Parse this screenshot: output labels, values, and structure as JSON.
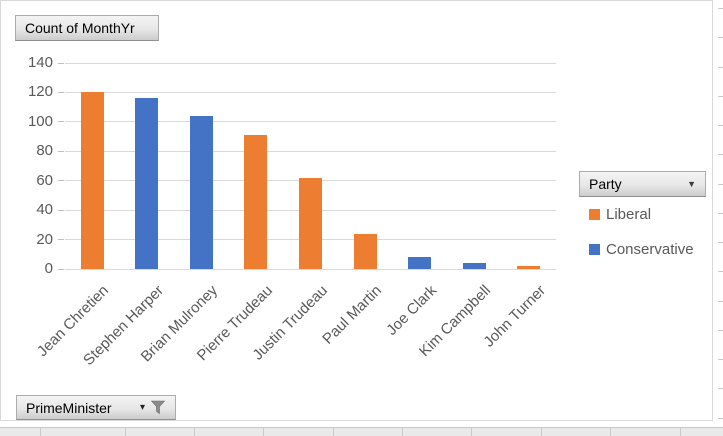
{
  "chart_data": {
    "type": "bar",
    "value_field": "Count of MonthYr",
    "category_field": "PrimeMinister",
    "legend_field": "Party",
    "categories": [
      "Jean Chretien",
      "Stephen Harper",
      "Brian Mulroney",
      "Pierre Trudeau",
      "Justin Trudeau",
      "Paul Martin",
      "Joe Clark",
      "Kim Campbell",
      "John Turner"
    ],
    "points": [
      {
        "category": "Jean Chretien",
        "value": 120,
        "party": "Liberal"
      },
      {
        "category": "Stephen Harper",
        "value": 116,
        "party": "Conservative"
      },
      {
        "category": "Brian Mulroney",
        "value": 104,
        "party": "Conservative"
      },
      {
        "category": "Pierre Trudeau",
        "value": 91,
        "party": "Liberal"
      },
      {
        "category": "Justin Trudeau",
        "value": 62,
        "party": "Liberal"
      },
      {
        "category": "Paul Martin",
        "value": 24,
        "party": "Liberal"
      },
      {
        "category": "Joe Clark",
        "value": 8,
        "party": "Conservative"
      },
      {
        "category": "Kim Campbell",
        "value": 4,
        "party": "Conservative"
      },
      {
        "category": "John Turner",
        "value": 2,
        "party": "Liberal"
      }
    ],
    "series": [
      {
        "name": "Liberal",
        "color": "#ED7D31"
      },
      {
        "name": "Conservative",
        "color": "#4472C4"
      }
    ],
    "ylim": [
      0,
      140
    ],
    "yticks": [
      0,
      20,
      40,
      60,
      80,
      100,
      120,
      140
    ],
    "grid": true,
    "legend_position": "right"
  },
  "field_buttons": {
    "value": {
      "label": "Count of MonthYr"
    },
    "legend": {
      "label": "Party",
      "icon": "chevron-down-icon"
    },
    "axis": {
      "label": "PrimeMinister",
      "icons": [
        "chevron-down-icon",
        "funnel-icon"
      ]
    }
  },
  "legend": {
    "title": "Party",
    "entries": [
      {
        "label": "Liberal",
        "color": "#ED7D31"
      },
      {
        "label": "Conservative",
        "color": "#4472C4"
      }
    ]
  },
  "colors": {
    "liberal": "#ED7D31",
    "conservative": "#4472C4",
    "gridline": "#D9D9D9",
    "axis_text": "#595959",
    "chart_border": "#D9D9D9"
  }
}
